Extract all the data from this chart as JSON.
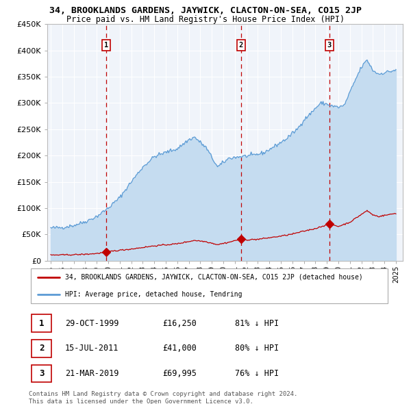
{
  "title": "34, BROOKLANDS GARDENS, JAYWICK, CLACTON-ON-SEA, CO15 2JP",
  "subtitle": "Price paid vs. HM Land Registry's House Price Index (HPI)",
  "legend_property": "34, BROOKLANDS GARDENS, JAYWICK, CLACTON-ON-SEA, CO15 2JP (detached house)",
  "legend_hpi": "HPI: Average price, detached house, Tendring",
  "footer1": "Contains HM Land Registry data © Crown copyright and database right 2024.",
  "footer2": "This data is licensed under the Open Government Licence v3.0.",
  "hpi_color": "#5b9bd5",
  "hpi_fill_color": "#c5dcf0",
  "property_color": "#c00000",
  "vline_color": "#c00000",
  "background_color": "#ffffff",
  "chart_bg": "#f0f4fa",
  "ylim": [
    0,
    450000
  ],
  "yticks": [
    0,
    50000,
    100000,
    150000,
    200000,
    250000,
    300000,
    350000,
    400000,
    450000
  ],
  "xlim_start": 1994.7,
  "xlim_end": 2025.6,
  "xtick_years": [
    1995,
    1996,
    1997,
    1998,
    1999,
    2000,
    2001,
    2002,
    2003,
    2004,
    2005,
    2006,
    2007,
    2008,
    2009,
    2010,
    2011,
    2012,
    2013,
    2014,
    2015,
    2016,
    2017,
    2018,
    2019,
    2020,
    2021,
    2022,
    2023,
    2024,
    2025
  ],
  "trans_years": [
    1999.83,
    2011.54,
    2019.22
  ],
  "trans_prices": [
    16250,
    41000,
    69995
  ],
  "trans_nums": [
    1,
    2,
    3
  ],
  "trans_dates": [
    "29-OCT-1999",
    "15-JUL-2011",
    "21-MAR-2019"
  ],
  "trans_price_strs": [
    "£16,250",
    "£41,000",
    "£69,995"
  ],
  "trans_pcts": [
    "81% ↓ HPI",
    "80% ↓ HPI",
    "76% ↓ HPI"
  ],
  "hpi_anchors_t": [
    1995.0,
    1996.0,
    1997.0,
    1998.0,
    1999.0,
    2000.0,
    2001.0,
    2002.0,
    2003.0,
    2004.0,
    2005.0,
    2006.0,
    2007.0,
    2007.5,
    2008.5,
    2009.5,
    2010.5,
    2011.5,
    2012.5,
    2013.5,
    2014.5,
    2015.5,
    2016.5,
    2017.0,
    2017.5,
    2018.0,
    2018.5,
    2019.0,
    2019.5,
    2020.0,
    2020.5,
    2021.0,
    2021.5,
    2022.0,
    2022.5,
    2023.0,
    2023.5,
    2024.0,
    2024.5,
    2025.0
  ],
  "hpi_anchors_v": [
    62000,
    63000,
    67000,
    74000,
    84000,
    100000,
    120000,
    150000,
    178000,
    198000,
    206000,
    213000,
    230000,
    235000,
    215000,
    178000,
    195000,
    198000,
    200000,
    205000,
    218000,
    232000,
    252000,
    268000,
    278000,
    290000,
    300000,
    298000,
    294000,
    292000,
    295000,
    320000,
    345000,
    368000,
    382000,
    362000,
    355000,
    358000,
    360000,
    363000
  ],
  "prop_anchors_t": [
    1995.0,
    1996.0,
    1997.0,
    1998.0,
    1999.0,
    1999.83,
    2000.5,
    2002.0,
    2004.0,
    2006.0,
    2007.5,
    2008.5,
    2009.5,
    2010.5,
    2011.54,
    2012.0,
    2013.0,
    2014.0,
    2015.0,
    2016.0,
    2017.0,
    2018.0,
    2019.22,
    2020.0,
    2021.0,
    2022.0,
    2022.5,
    2023.0,
    2023.5,
    2024.0,
    2024.5,
    2025.0
  ],
  "prop_anchors_v": [
    10500,
    10800,
    11200,
    12000,
    13500,
    16250,
    18500,
    22000,
    28000,
    32000,
    38500,
    36000,
    30500,
    35000,
    41000,
    39500,
    40500,
    43500,
    46500,
    50500,
    56000,
    61000,
    69995,
    65000,
    73000,
    88000,
    95000,
    87000,
    84000,
    86000,
    88000,
    90000
  ]
}
